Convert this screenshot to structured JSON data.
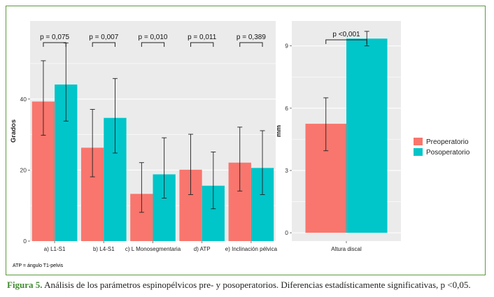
{
  "caption": {
    "label": "Figura 5.",
    "text": " Análisis de los parámetros espinopélvicos pre- y posoperatorios. Diferencias estadísticamente significativas, p <0,05."
  },
  "footnote": "ATP = ángulo T1-pelvis",
  "colors": {
    "pre": "#f8766d",
    "post": "#00c5c9",
    "panel": "#ebebeb",
    "grid": "#ffffff",
    "frame": "#5a9a3c"
  },
  "legend": {
    "pre": "Preoperatorio",
    "post": "Posoperatorio"
  },
  "chart_data": [
    {
      "type": "bar",
      "ylabel": "Grados",
      "ylim": [
        0,
        62
      ],
      "yticks": [
        0,
        20,
        40
      ],
      "categories": [
        "a) L1-S1",
        "b) L4-S1",
        "c) L Monosegmentaria",
        "d) ATP",
        "e) Inclinación pélvica"
      ],
      "series": [
        {
          "name": "Preoperatorio",
          "values": [
            39.3,
            26.3,
            13.3,
            20.1,
            22.1
          ],
          "err_low": [
            29.8,
            18.1,
            8.1,
            13.1,
            14.1
          ],
          "err_high": [
            50.8,
            37.1,
            22.1,
            30.1,
            32.1
          ]
        },
        {
          "name": "Posoperatorio",
          "values": [
            44.1,
            34.7,
            18.8,
            15.6,
            20.6
          ],
          "err_low": [
            33.8,
            24.8,
            12.1,
            9.1,
            13.1
          ],
          "err_high": [
            55.8,
            45.8,
            29.1,
            25.1,
            31.1
          ]
        }
      ],
      "p_values": [
        "p = 0,075",
        "p = 0,007",
        "p = 0,010",
        "p = 0,011",
        "p = 0,389"
      ]
    },
    {
      "type": "bar",
      "ylabel": "mm",
      "ylim": [
        -0.4,
        10.2
      ],
      "yticks": [
        0,
        3,
        6,
        9
      ],
      "categories": [
        "Altura discal"
      ],
      "series": [
        {
          "name": "Preoperatorio",
          "values": [
            5.25
          ],
          "err_low": [
            3.95
          ],
          "err_high": [
            6.5
          ]
        },
        {
          "name": "Posoperatorio",
          "values": [
            9.35
          ],
          "err_low": [
            9.0
          ],
          "err_high": [
            9.7
          ]
        }
      ],
      "p_values": [
        "p <0,001"
      ]
    }
  ]
}
